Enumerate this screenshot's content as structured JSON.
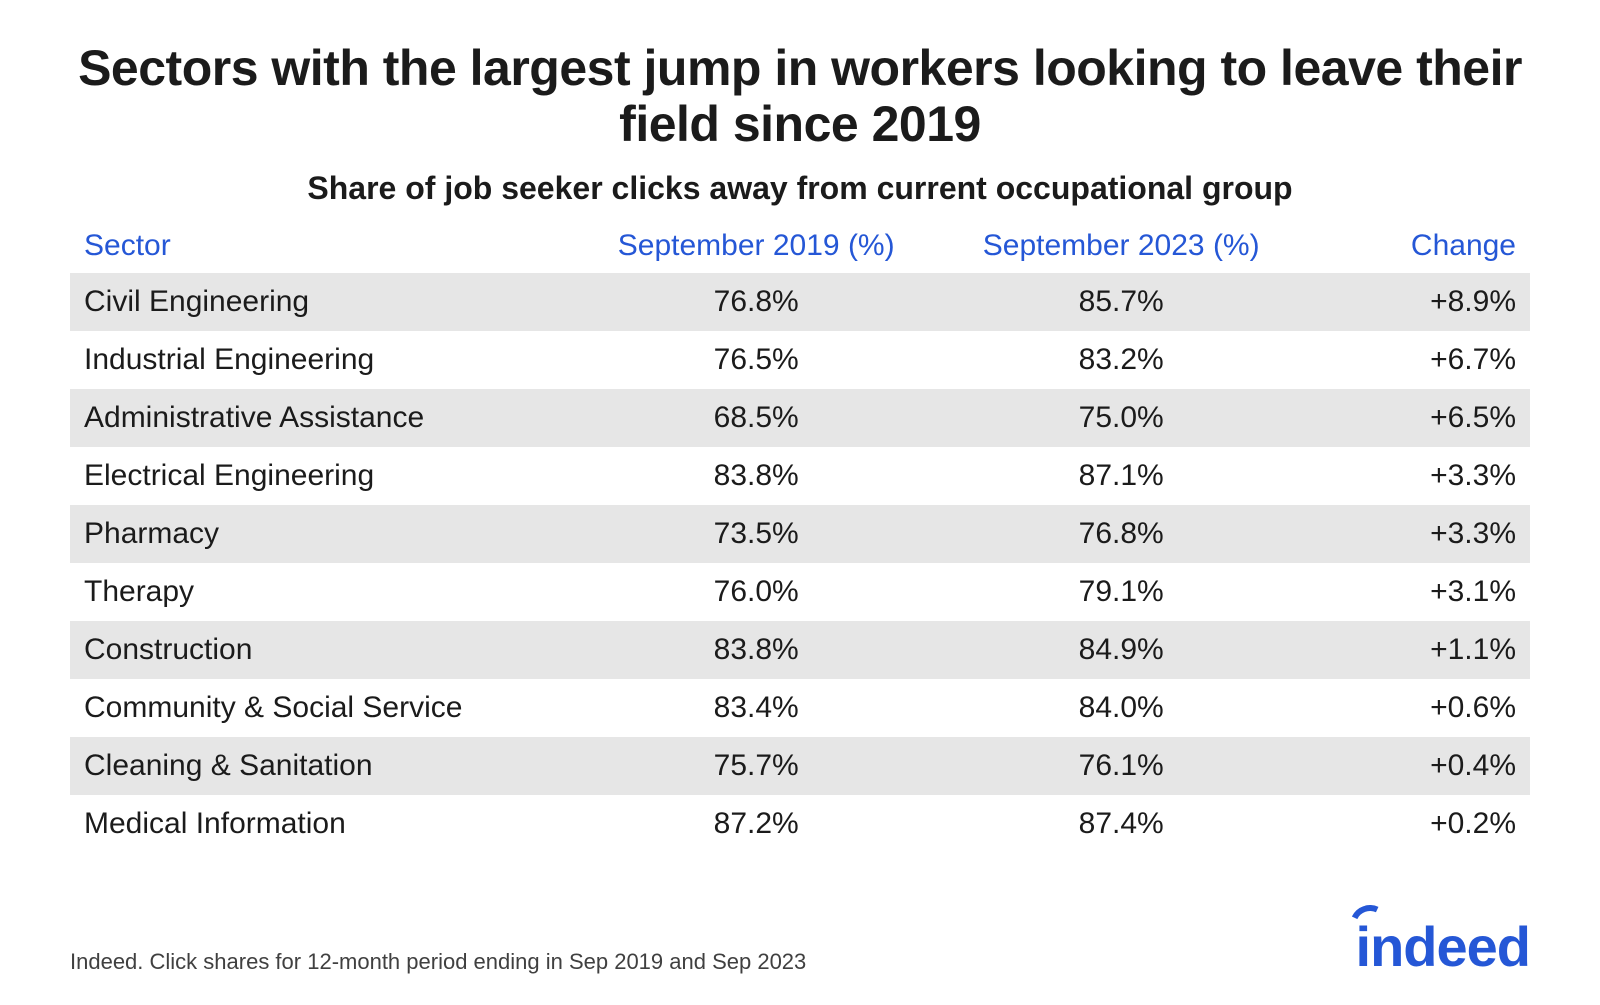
{
  "title": "Sectors with the largest jump in workers looking to leave their field since 2019",
  "subtitle": "Share of job seeker clicks away from current occupational group",
  "columns": {
    "sector": "Sector",
    "y2019": "September 2019 (%)",
    "y2023": "September 2023 (%)",
    "change": "Change"
  },
  "header_color": "#2557d6",
  "row_alt_bg": "#e6e6e6",
  "text_color": "#1b1b1b",
  "background_color": "#ffffff",
  "title_fontsize": 50,
  "subtitle_fontsize": 32,
  "cell_fontsize": 30,
  "rows": [
    {
      "sector": "Civil Engineering",
      "y2019": "76.8%",
      "y2023": "85.7%",
      "change": "+8.9%"
    },
    {
      "sector": "Industrial Engineering",
      "y2019": "76.5%",
      "y2023": "83.2%",
      "change": "+6.7%"
    },
    {
      "sector": "Administrative Assistance",
      "y2019": "68.5%",
      "y2023": "75.0%",
      "change": "+6.5%"
    },
    {
      "sector": "Electrical Engineering",
      "y2019": "83.8%",
      "y2023": "87.1%",
      "change": "+3.3%"
    },
    {
      "sector": "Pharmacy",
      "y2019": "73.5%",
      "y2023": "76.8%",
      "change": "+3.3%"
    },
    {
      "sector": "Therapy",
      "y2019": "76.0%",
      "y2023": "79.1%",
      "change": "+3.1%"
    },
    {
      "sector": "Construction",
      "y2019": "83.8%",
      "y2023": "84.9%",
      "change": "+1.1%"
    },
    {
      "sector": "Community & Social Service",
      "y2019": "83.4%",
      "y2023": "84.0%",
      "change": "+0.6%"
    },
    {
      "sector": "Cleaning & Sanitation",
      "y2019": "75.7%",
      "y2023": "76.1%",
      "change": "+0.4%"
    },
    {
      "sector": "Medical Information",
      "y2019": "87.2%",
      "y2023": "87.4%",
      "change": "+0.2%"
    }
  ],
  "footnote": "Indeed. Click shares for 12-month period ending in Sep 2019 and Sep 2023",
  "logo_text": "indeed",
  "logo_color": "#2557d6"
}
